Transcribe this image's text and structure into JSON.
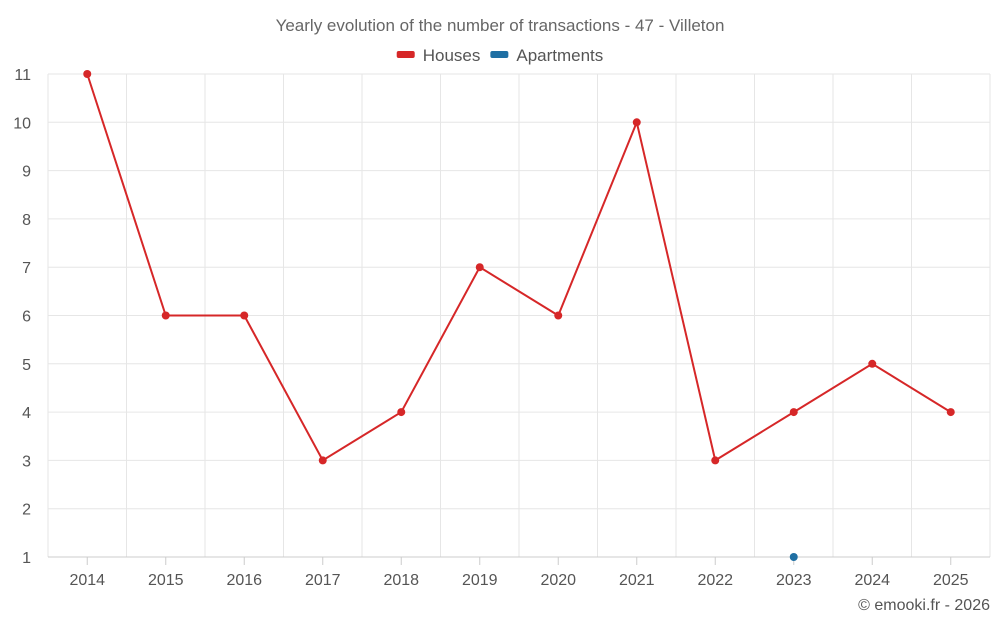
{
  "chart_data": {
    "type": "line",
    "title": "Yearly evolution of the number of transactions - 47 - Villeton",
    "xlabel": "",
    "ylabel": "",
    "categories": [
      "2014",
      "2015",
      "2016",
      "2017",
      "2018",
      "2019",
      "2020",
      "2021",
      "2022",
      "2023",
      "2024",
      "2025"
    ],
    "ylim": [
      1,
      11
    ],
    "yticks": [
      1,
      2,
      3,
      4,
      5,
      6,
      7,
      8,
      9,
      10,
      11
    ],
    "grid": true,
    "legend_position": "top-center",
    "series": [
      {
        "name": "Houses",
        "color": "#d62728",
        "values": [
          11,
          6,
          6,
          3,
          4,
          7,
          6,
          10,
          3,
          4,
          5,
          4
        ]
      },
      {
        "name": "Apartments",
        "color": "#1f6fa3",
        "values": [
          null,
          null,
          null,
          null,
          null,
          null,
          null,
          null,
          null,
          1,
          null,
          null
        ]
      }
    ]
  },
  "credit": "© emooki.fr - 2026"
}
